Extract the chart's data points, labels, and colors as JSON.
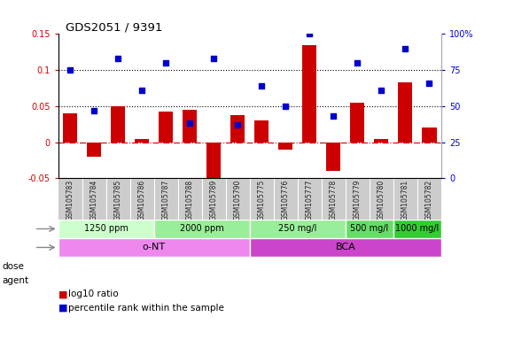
{
  "title": "GDS2051 / 9391",
  "samples": [
    "GSM105783",
    "GSM105784",
    "GSM105785",
    "GSM105786",
    "GSM105787",
    "GSM105788",
    "GSM105789",
    "GSM105790",
    "GSM105775",
    "GSM105776",
    "GSM105777",
    "GSM105778",
    "GSM105779",
    "GSM105780",
    "GSM105781",
    "GSM105782"
  ],
  "log10_ratio": [
    0.04,
    -0.02,
    0.05,
    0.005,
    0.042,
    0.045,
    -0.065,
    0.038,
    0.03,
    -0.01,
    0.135,
    -0.04,
    0.055,
    0.005,
    0.083,
    0.02
  ],
  "percentile_rank": [
    75,
    47,
    83,
    61,
    80,
    38,
    83,
    37,
    64,
    50,
    100,
    43,
    80,
    61,
    90,
    66
  ],
  "ylim_left": [
    -0.05,
    0.15
  ],
  "ylim_right": [
    0,
    100
  ],
  "hlines": [
    0.05,
    0.1
  ],
  "bar_color": "#cc0000",
  "scatter_color": "#0000cc",
  "dose_groups": [
    {
      "label": "1250 ppm",
      "start": 0,
      "end": 4,
      "color": "#ccffcc"
    },
    {
      "label": "2000 ppm",
      "start": 4,
      "end": 8,
      "color": "#99ee99"
    },
    {
      "label": "250 mg/l",
      "start": 8,
      "end": 12,
      "color": "#99ee99"
    },
    {
      "label": "500 mg/l",
      "start": 12,
      "end": 14,
      "color": "#66dd66"
    },
    {
      "label": "1000 mg/l",
      "start": 14,
      "end": 16,
      "color": "#33cc33"
    }
  ],
  "agent_groups": [
    {
      "label": "o-NT",
      "start": 0,
      "end": 8,
      "color": "#ee88ee"
    },
    {
      "label": "BCA",
      "start": 8,
      "end": 16,
      "color": "#cc44cc"
    }
  ],
  "left_yticks": [
    -0.05,
    0.0,
    0.05,
    0.1,
    0.15
  ],
  "left_yticklabels": [
    "-0.05",
    "0",
    "0.05",
    "0.1",
    "0.15"
  ],
  "right_yticks": [
    0,
    25,
    50,
    75,
    100
  ],
  "right_yticklabels": [
    "0",
    "25",
    "50",
    "75",
    "100%"
  ],
  "xlabel_color": "#cc0000",
  "ylabel_right_color": "#0000cc",
  "zero_line_color": "#cc0000",
  "background_color": "#ffffff",
  "plot_bg": "#ffffff",
  "label_bg": "#cccccc"
}
